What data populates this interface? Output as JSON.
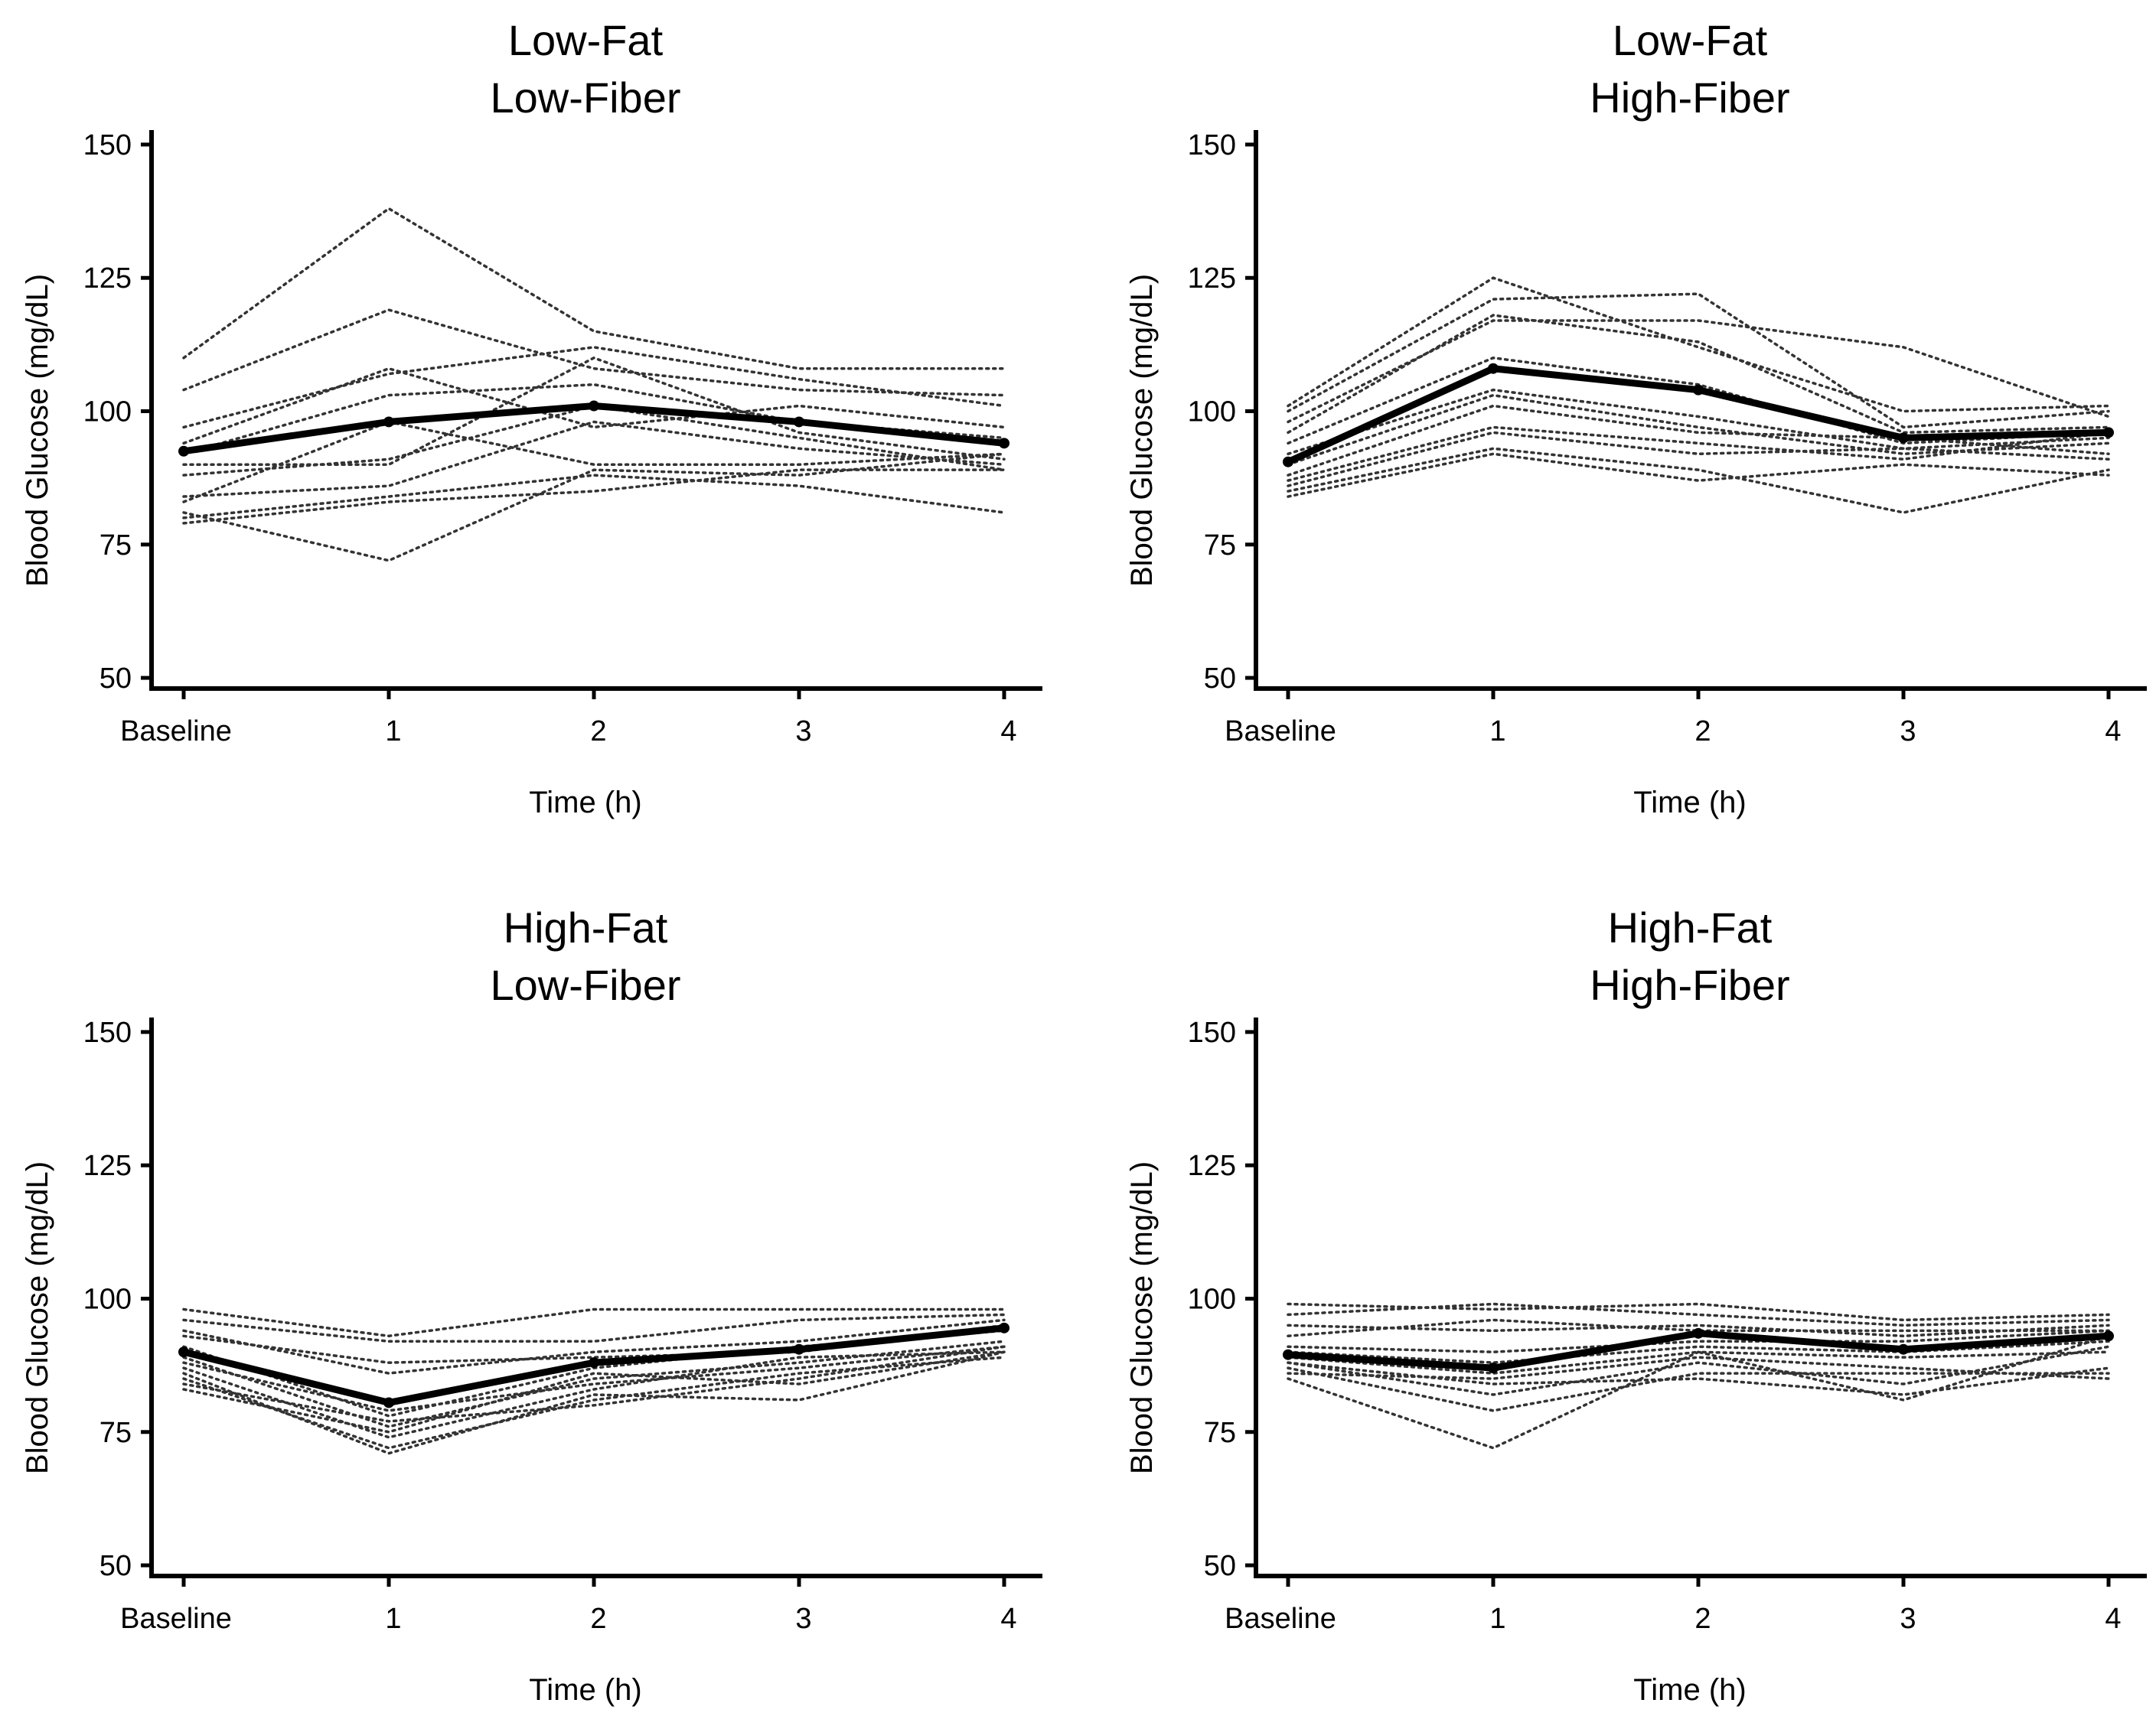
{
  "figure": {
    "y_axis_label": "Blood Glucose (mg/dL)",
    "x_axis_label": "Time (h)"
  },
  "chart_data": [
    {
      "type": "line",
      "title": [
        "Low-Fat",
        "Low-Fiber"
      ],
      "categories": [
        "Baseline",
        "1",
        "2",
        "3",
        "4"
      ],
      "ylim": [
        48,
        152
      ],
      "yticks": [
        50,
        75,
        100,
        125,
        150
      ],
      "xlabel": "Time (h)",
      "ylabel": "Blood Glucose (mg/dL)",
      "mean": {
        "name": "Mean",
        "values": [
          92.5,
          98,
          101,
          98,
          94
        ]
      },
      "individuals": [
        [
          110,
          138,
          115,
          108,
          108
        ],
        [
          104,
          119,
          108,
          104,
          103
        ],
        [
          97,
          107,
          112,
          106,
          101
        ],
        [
          94,
          108,
          97,
          101,
          97
        ],
        [
          92,
          103,
          105,
          98,
          95
        ],
        [
          90,
          90,
          110,
          96,
          91
        ],
        [
          88,
          91,
          101,
          95,
          89
        ],
        [
          84,
          86,
          98,
          93,
          90
        ],
        [
          83,
          98,
          90,
          90,
          92
        ],
        [
          81,
          72,
          89,
          88,
          92
        ],
        [
          80,
          84,
          88,
          86,
          81
        ],
        [
          79,
          83,
          85,
          89,
          89
        ]
      ]
    },
    {
      "type": "line",
      "title": [
        "Low-Fat",
        "High-Fiber"
      ],
      "categories": [
        "Baseline",
        "1",
        "2",
        "3",
        "4"
      ],
      "ylim": [
        48,
        152
      ],
      "yticks": [
        50,
        75,
        100,
        125,
        150
      ],
      "xlabel": "Time (h)",
      "ylabel": "Blood Glucose (mg/dL)",
      "mean": {
        "name": "Mean",
        "values": [
          90.5,
          108,
          104,
          95,
          96
        ]
      },
      "individuals": [
        [
          101,
          125,
          112,
          100,
          101
        ],
        [
          100,
          121,
          122,
          97,
          100
        ],
        [
          98,
          117,
          117,
          112,
          99
        ],
        [
          96,
          118,
          113,
          96,
          97
        ],
        [
          94,
          110,
          105,
          94,
          96
        ],
        [
          92,
          104,
          99,
          93,
          95
        ],
        [
          90,
          103,
          97,
          92,
          94
        ],
        [
          88,
          101,
          96,
          95,
          92
        ],
        [
          87,
          97,
          94,
          91,
          96
        ],
        [
          86,
          96,
          92,
          93,
          91
        ],
        [
          85,
          93,
          89,
          81,
          89
        ],
        [
          84,
          92,
          87,
          90,
          88
        ]
      ]
    },
    {
      "type": "line",
      "title": [
        "High-Fat",
        "Low-Fiber"
      ],
      "categories": [
        "Baseline",
        "1",
        "2",
        "3",
        "4"
      ],
      "ylim": [
        48,
        152
      ],
      "yticks": [
        50,
        75,
        100,
        125,
        150
      ],
      "xlabel": "Time (h)",
      "ylabel": "Blood Glucose (mg/dL)",
      "mean": {
        "name": "Mean",
        "values": [
          90,
          80.5,
          88,
          90.5,
          94.5
        ]
      },
      "individuals": [
        [
          98,
          93,
          98,
          98,
          98
        ],
        [
          96,
          92,
          92,
          96,
          97
        ],
        [
          94,
          86,
          90,
          92,
          96
        ],
        [
          93,
          88,
          89,
          90,
          95
        ],
        [
          91,
          78,
          87,
          91,
          94
        ],
        [
          89,
          76,
          85,
          88,
          92
        ],
        [
          88,
          79,
          84,
          87,
          91
        ],
        [
          87,
          74,
          83,
          89,
          90
        ],
        [
          86,
          71,
          82,
          81,
          90
        ],
        [
          85,
          72,
          81,
          86,
          89
        ],
        [
          84,
          77,
          80,
          85,
          91
        ],
        [
          83,
          75,
          86,
          84,
          90
        ]
      ]
    },
    {
      "type": "line",
      "title": [
        "High-Fat",
        "High-Fiber"
      ],
      "categories": [
        "Baseline",
        "1",
        "2",
        "3",
        "4"
      ],
      "ylim": [
        48,
        152
      ],
      "yticks": [
        50,
        75,
        100,
        125,
        150
      ],
      "xlabel": "Time (h)",
      "ylabel": "Blood Glucose (mg/dL)",
      "mean": {
        "name": "Mean",
        "values": [
          89.5,
          87,
          93.5,
          90.5,
          93
        ]
      },
      "individuals": [
        [
          99,
          98,
          99,
          96,
          97
        ],
        [
          97,
          99,
          97,
          95,
          96
        ],
        [
          95,
          94,
          95,
          93,
          95
        ],
        [
          93,
          96,
          94,
          94,
          94
        ],
        [
          91,
          90,
          92,
          92,
          94
        ],
        [
          90,
          88,
          91,
          90,
          92
        ],
        [
          89,
          86,
          90,
          81,
          93
        ],
        [
          88,
          82,
          88,
          84,
          91
        ],
        [
          87,
          79,
          86,
          86,
          86
        ],
        [
          86,
          85,
          89,
          87,
          85
        ],
        [
          85,
          72,
          90,
          89,
          90
        ],
        [
          88,
          84,
          85,
          82,
          87
        ]
      ]
    }
  ]
}
